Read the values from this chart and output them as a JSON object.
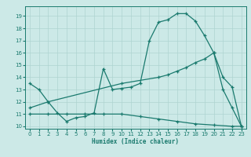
{
  "xlabel": "Humidex (Indice chaleur)",
  "xlim": [
    -0.5,
    23.5
  ],
  "ylim": [
    9.8,
    19.8
  ],
  "yticks": [
    10,
    11,
    12,
    13,
    14,
    15,
    16,
    17,
    18,
    19
  ],
  "xticks": [
    0,
    1,
    2,
    3,
    4,
    5,
    6,
    7,
    8,
    9,
    10,
    11,
    12,
    13,
    14,
    15,
    16,
    17,
    18,
    19,
    20,
    21,
    22,
    23
  ],
  "bg_color": "#cce9e7",
  "line_color": "#1a7a6e",
  "grid_color": "#aed4d1",
  "line1_x": [
    0,
    1,
    2,
    3,
    4,
    5,
    6,
    7,
    8,
    9,
    10,
    11,
    12,
    13,
    14,
    15,
    16,
    17,
    18,
    19,
    20,
    21,
    22,
    23
  ],
  "line1_y": [
    13.5,
    13.0,
    12.0,
    11.1,
    10.4,
    10.7,
    10.8,
    11.1,
    14.7,
    13.0,
    13.1,
    13.2,
    13.5,
    17.0,
    18.5,
    18.7,
    19.2,
    19.2,
    18.6,
    17.4,
    16.0,
    13.0,
    11.5,
    10.0
  ],
  "line2_x": [
    0,
    2,
    10,
    14,
    15,
    16,
    17,
    18,
    19,
    20,
    21,
    22,
    23
  ],
  "line2_y": [
    11.5,
    12.0,
    13.5,
    14.0,
    14.2,
    14.5,
    14.8,
    15.2,
    15.5,
    16.0,
    14.0,
    13.2,
    10.0
  ],
  "line3_x": [
    0,
    2,
    4,
    6,
    8,
    10,
    12,
    14,
    16,
    18,
    20,
    22,
    23
  ],
  "line3_y": [
    11.0,
    11.0,
    11.0,
    11.0,
    11.0,
    11.0,
    10.8,
    10.6,
    10.4,
    10.2,
    10.1,
    10.0,
    10.0
  ]
}
